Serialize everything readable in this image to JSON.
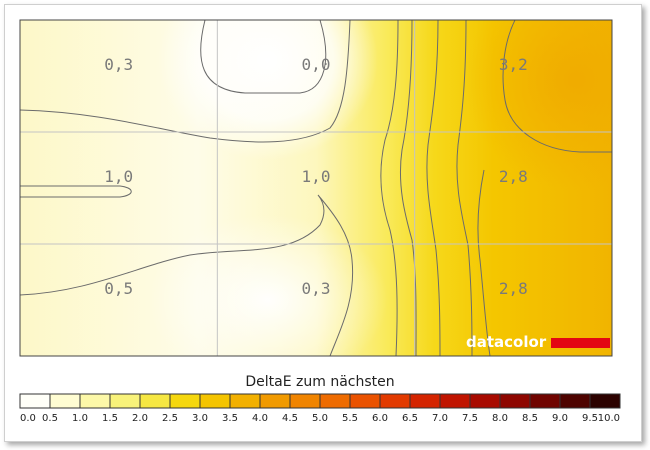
{
  "chart_data": {
    "type": "heatmap",
    "rows": 3,
    "cols": 3,
    "grid": true,
    "values": [
      [
        0.3,
        0.0,
        3.2
      ],
      [
        1.0,
        1.0,
        2.8
      ],
      [
        0.5,
        0.3,
        2.8
      ]
    ],
    "labels": [
      [
        "0,3",
        "0,0",
        "3,2"
      ],
      [
        "1,0",
        "1,0",
        "2,8"
      ],
      [
        "0,5",
        "0,3",
        "2,8"
      ]
    ],
    "colorbar": {
      "title": "DeltaE zum nächsten",
      "range": [
        0,
        10
      ],
      "ticks": [
        "0.0",
        "0.5",
        "1.0",
        "1.5",
        "2.0",
        "2.5",
        "3.0",
        "3.5",
        "4.0",
        "4.5",
        "5.0",
        "5.5",
        "6.0",
        "6.5",
        "7.0",
        "7.5",
        "8.0",
        "8.5",
        "9.0",
        "9.5",
        "10.0"
      ],
      "colors": [
        "#fffff8",
        "#fffdd2",
        "#fcf8a8",
        "#f8f27a",
        "#f6e742",
        "#f5d70e",
        "#f4c400",
        "#f2b000",
        "#f19a00",
        "#f08400",
        "#ee6b00",
        "#ea5200",
        "#e23a00",
        "#d42400",
        "#c01400",
        "#a80a00",
        "#8e0600",
        "#700400",
        "#4e0300",
        "#2c0200"
      ]
    },
    "watermark": "datacolor",
    "palette": {
      "low": "#ffffff",
      "mid": "#fdf6b0",
      "high": "#f2b100",
      "contour": "#666666",
      "brand_bar": "#e30613"
    }
  }
}
